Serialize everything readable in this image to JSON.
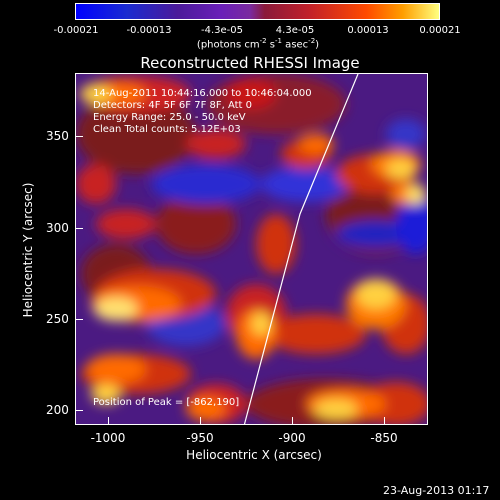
{
  "colorbar": {
    "ticks": [
      "-0.00021",
      "-0.00013",
      "-4.3e-05",
      "4.3e-05",
      "0.00013",
      "0.00021"
    ],
    "units_main": "(photons cm",
    "units_exp1": "-2",
    "units_mid": " s",
    "units_exp2": "-1",
    "units_end": " asec",
    "units_exp3": "-2",
    "units_close": ")"
  },
  "title": "Reconstructed RHESSI Image",
  "annotations": {
    "time": "14-Aug-2011 10:44:16.000 to 10:46:04.000",
    "detectors": "Detectors: 4F 5F 6F 7F 8F, Att 0",
    "energy": "Energy Range: 25.0 - 50.0 keV",
    "algorithm": "Clean     Total counts: 5.12E+03",
    "peak": "Position of Peak = [-862,190]"
  },
  "axes": {
    "xlabel": "Heliocentric X (arcsec)",
    "ylabel": "Heliocentric Y (arcsec)",
    "xticks": [
      "-1000",
      "-950",
      "-900",
      "-850"
    ],
    "yticks": [
      "350",
      "300",
      "250",
      "200"
    ]
  },
  "footer": {
    "date": "23-Aug-2013 01:17"
  }
}
